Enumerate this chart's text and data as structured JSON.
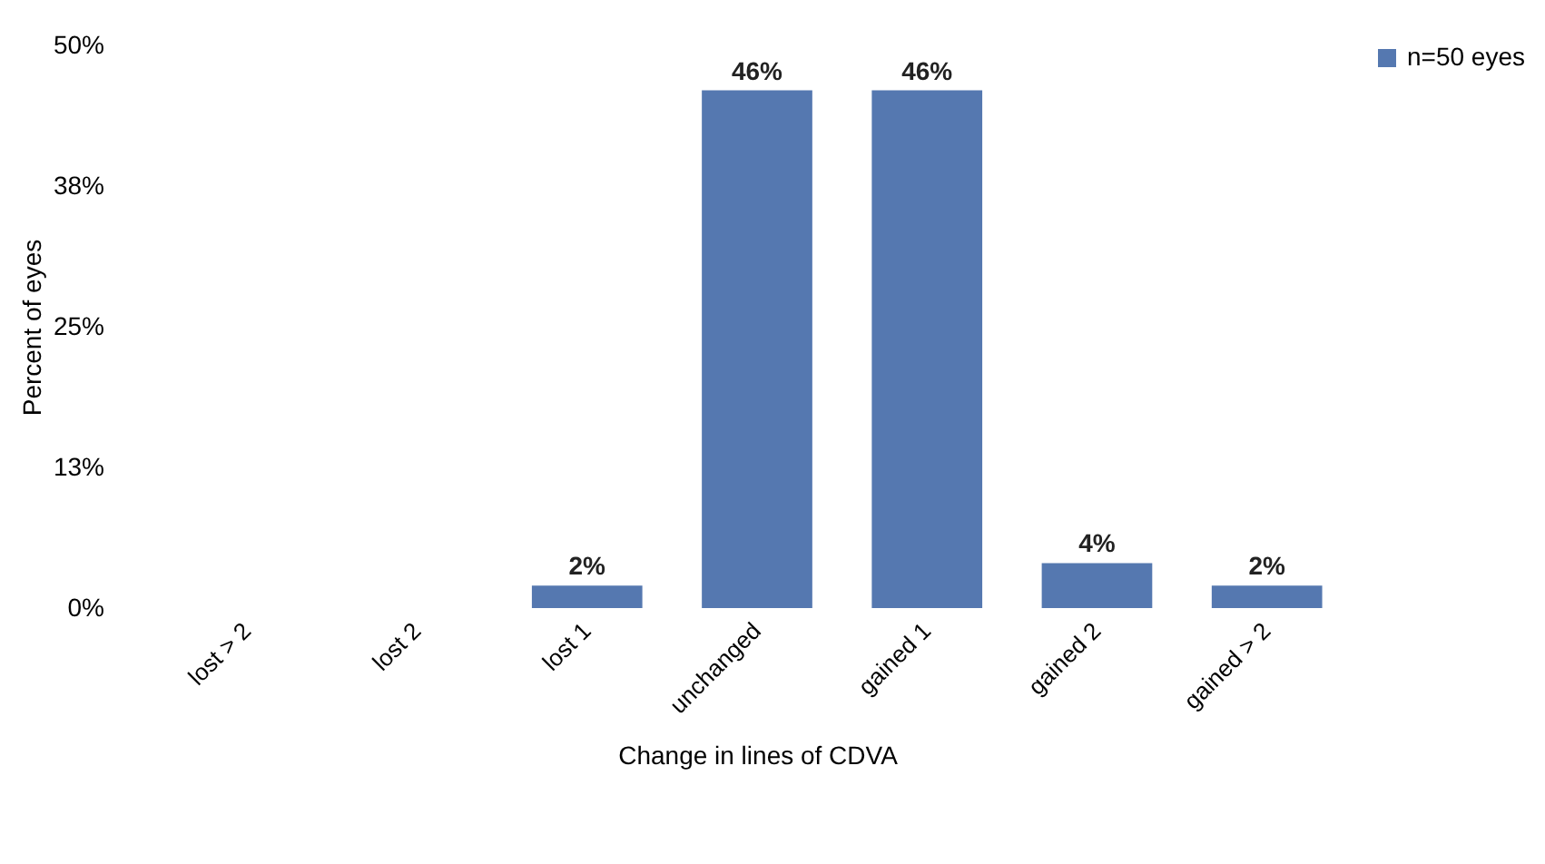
{
  "chart_data": {
    "type": "bar",
    "xlabel": "Change in lines of CDVA",
    "ylabel": "Percent of eyes",
    "categories": [
      "lost > 2",
      "lost 2",
      "lost 1",
      "unchanged",
      "gained 1",
      "gained 2",
      "gained > 2"
    ],
    "series": [
      {
        "name": "n=50 eyes",
        "color": "#5578b0",
        "values": [
          0,
          0,
          2,
          46,
          46,
          4,
          2
        ],
        "value_labels": [
          null,
          null,
          "2%",
          "46%",
          "46%",
          "4%",
          "2%"
        ]
      }
    ],
    "ylim": [
      0,
      50
    ],
    "yticks": [
      {
        "value": 0,
        "label": "0%"
      },
      {
        "value": 12.5,
        "label": "13%"
      },
      {
        "value": 25,
        "label": "25%"
      },
      {
        "value": 37.5,
        "label": "38%"
      },
      {
        "value": 50,
        "label": "50%"
      }
    ],
    "grid": false,
    "legend": "right"
  }
}
